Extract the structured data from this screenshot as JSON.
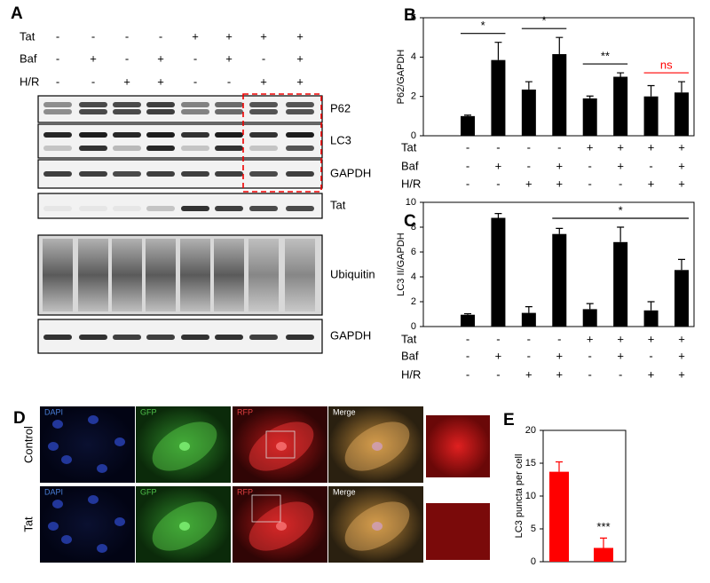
{
  "figure": {
    "panel_labels": [
      "A",
      "B",
      "C",
      "D",
      "E"
    ],
    "blot": {
      "condition_rows": [
        {
          "label": "Tat",
          "signs": [
            "-",
            "-",
            "-",
            "-",
            "+",
            "+",
            "+",
            "+"
          ]
        },
        {
          "label": "Baf",
          "signs": [
            "-",
            "+",
            "-",
            "+",
            "-",
            "+",
            "-",
            "+"
          ]
        },
        {
          "label": "H/R",
          "signs": [
            "-",
            "-",
            "+",
            "+",
            "-",
            "-",
            "+",
            "+"
          ]
        }
      ],
      "bands": [
        "P62",
        "LC3",
        "GAPDH",
        "Tat",
        "Ubiquitin",
        "GAPDH"
      ]
    },
    "micrographs": {
      "rows": [
        "Control",
        "Tat"
      ],
      "channels": [
        [
          "DAPI",
          "GFP",
          "RFP",
          "Merge"
        ],
        [
          "DAPI",
          "GFP",
          "RFP",
          "Merge"
        ]
      ]
    }
  },
  "chart_data": [
    {
      "type": "bar",
      "y_label": "P62/GAPDH",
      "values": [
        1.0,
        3.85,
        2.35,
        4.15,
        1.9,
        3.0,
        2.0,
        2.2
      ],
      "errors": [
        0.05,
        0.9,
        0.4,
        0.85,
        0.12,
        0.2,
        0.55,
        0.55
      ],
      "color": "#000000",
      "ylim": [
        0,
        6
      ],
      "yticks": [
        0,
        2,
        4,
        6
      ],
      "conditions": [
        {
          "label": "Tat",
          "signs": [
            "-",
            "-",
            "-",
            "-",
            "+",
            "+",
            "+",
            "+"
          ]
        },
        {
          "label": "Baf",
          "signs": [
            "-",
            "+",
            "-",
            "+",
            "-",
            "+",
            "-",
            "+"
          ]
        },
        {
          "label": "H/R",
          "signs": [
            "-",
            "-",
            "+",
            "+",
            "-",
            "-",
            "+",
            "+"
          ]
        }
      ],
      "annotations": [
        {
          "text": "*",
          "from": 0,
          "to": 1,
          "color": "#000000"
        },
        {
          "text": "*",
          "from": 2,
          "to": 3,
          "color": "#000000"
        },
        {
          "text": "**",
          "from": 4,
          "to": 5,
          "color": "#000000"
        },
        {
          "text": "ns",
          "from": 6,
          "to": 7,
          "color": "#ff0000"
        }
      ]
    },
    {
      "type": "bar",
      "y_label": "LC3 II/GAPDH",
      "values": [
        0.95,
        8.75,
        1.1,
        7.45,
        1.4,
        6.8,
        1.3,
        4.55
      ],
      "errors": [
        0.08,
        0.35,
        0.5,
        0.45,
        0.45,
        1.2,
        0.7,
        0.85
      ],
      "color": "#000000",
      "ylim": [
        0,
        10
      ],
      "yticks": [
        0,
        2,
        4,
        6,
        8,
        10
      ],
      "conditions": [
        {
          "label": "Tat",
          "signs": [
            "-",
            "-",
            "-",
            "-",
            "+",
            "+",
            "+",
            "+"
          ]
        },
        {
          "label": "Baf",
          "signs": [
            "-",
            "+",
            "-",
            "+",
            "-",
            "+",
            "-",
            "+"
          ]
        },
        {
          "label": "H/R",
          "signs": [
            "-",
            "-",
            "+",
            "+",
            "-",
            "-",
            "+",
            "+"
          ]
        }
      ],
      "annotations": [
        {
          "text": "*",
          "from": 3,
          "to": 7,
          "color": "#000000"
        }
      ]
    },
    {
      "type": "bar",
      "y_label": "LC3 puncta per cell",
      "categories": [
        null,
        null
      ],
      "values": [
        13.7,
        2.1
      ],
      "errors": [
        1.5,
        1.5
      ],
      "color": "#ff0000",
      "ylim": [
        0,
        20
      ],
      "yticks": [
        0,
        5,
        10,
        15,
        20
      ],
      "annotations": [
        {
          "text": "***",
          "from": 1,
          "to": 1,
          "color": "#000000"
        }
      ]
    }
  ]
}
